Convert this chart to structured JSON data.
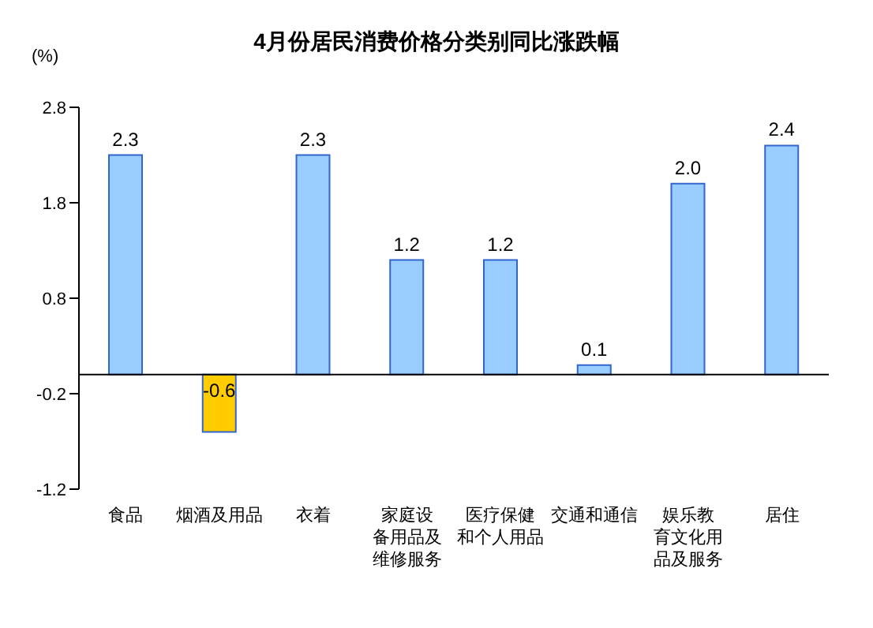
{
  "chart_data": {
    "type": "bar",
    "title": "4月份居民消费价格分类别同比涨跌幅",
    "ylabel": "(%)",
    "categories": [
      "食品",
      "烟酒及用品",
      "衣着",
      "家庭设备用品及维修服务",
      "医疗保健和个人用品",
      "交通和通信",
      "娱乐教育文化用品及服务",
      "居住"
    ],
    "values": [
      2.3,
      -0.6,
      2.3,
      1.2,
      1.2,
      0.1,
      2.0,
      2.4
    ],
    "colors": [
      "#99ccff",
      "#ffcc00",
      "#99ccff",
      "#99ccff",
      "#99ccff",
      "#99ccff",
      "#99ccff",
      "#99ccff"
    ],
    "ylim": [
      -1.2,
      2.8
    ],
    "yticks": [
      -1.2,
      -0.2,
      0.8,
      1.8,
      2.8
    ],
    "grid": false,
    "legend": false,
    "value_labels": [
      "2.3",
      "-0.6",
      "2.3",
      "1.2",
      "1.2",
      "0.1",
      "2.0",
      "2.4"
    ]
  }
}
